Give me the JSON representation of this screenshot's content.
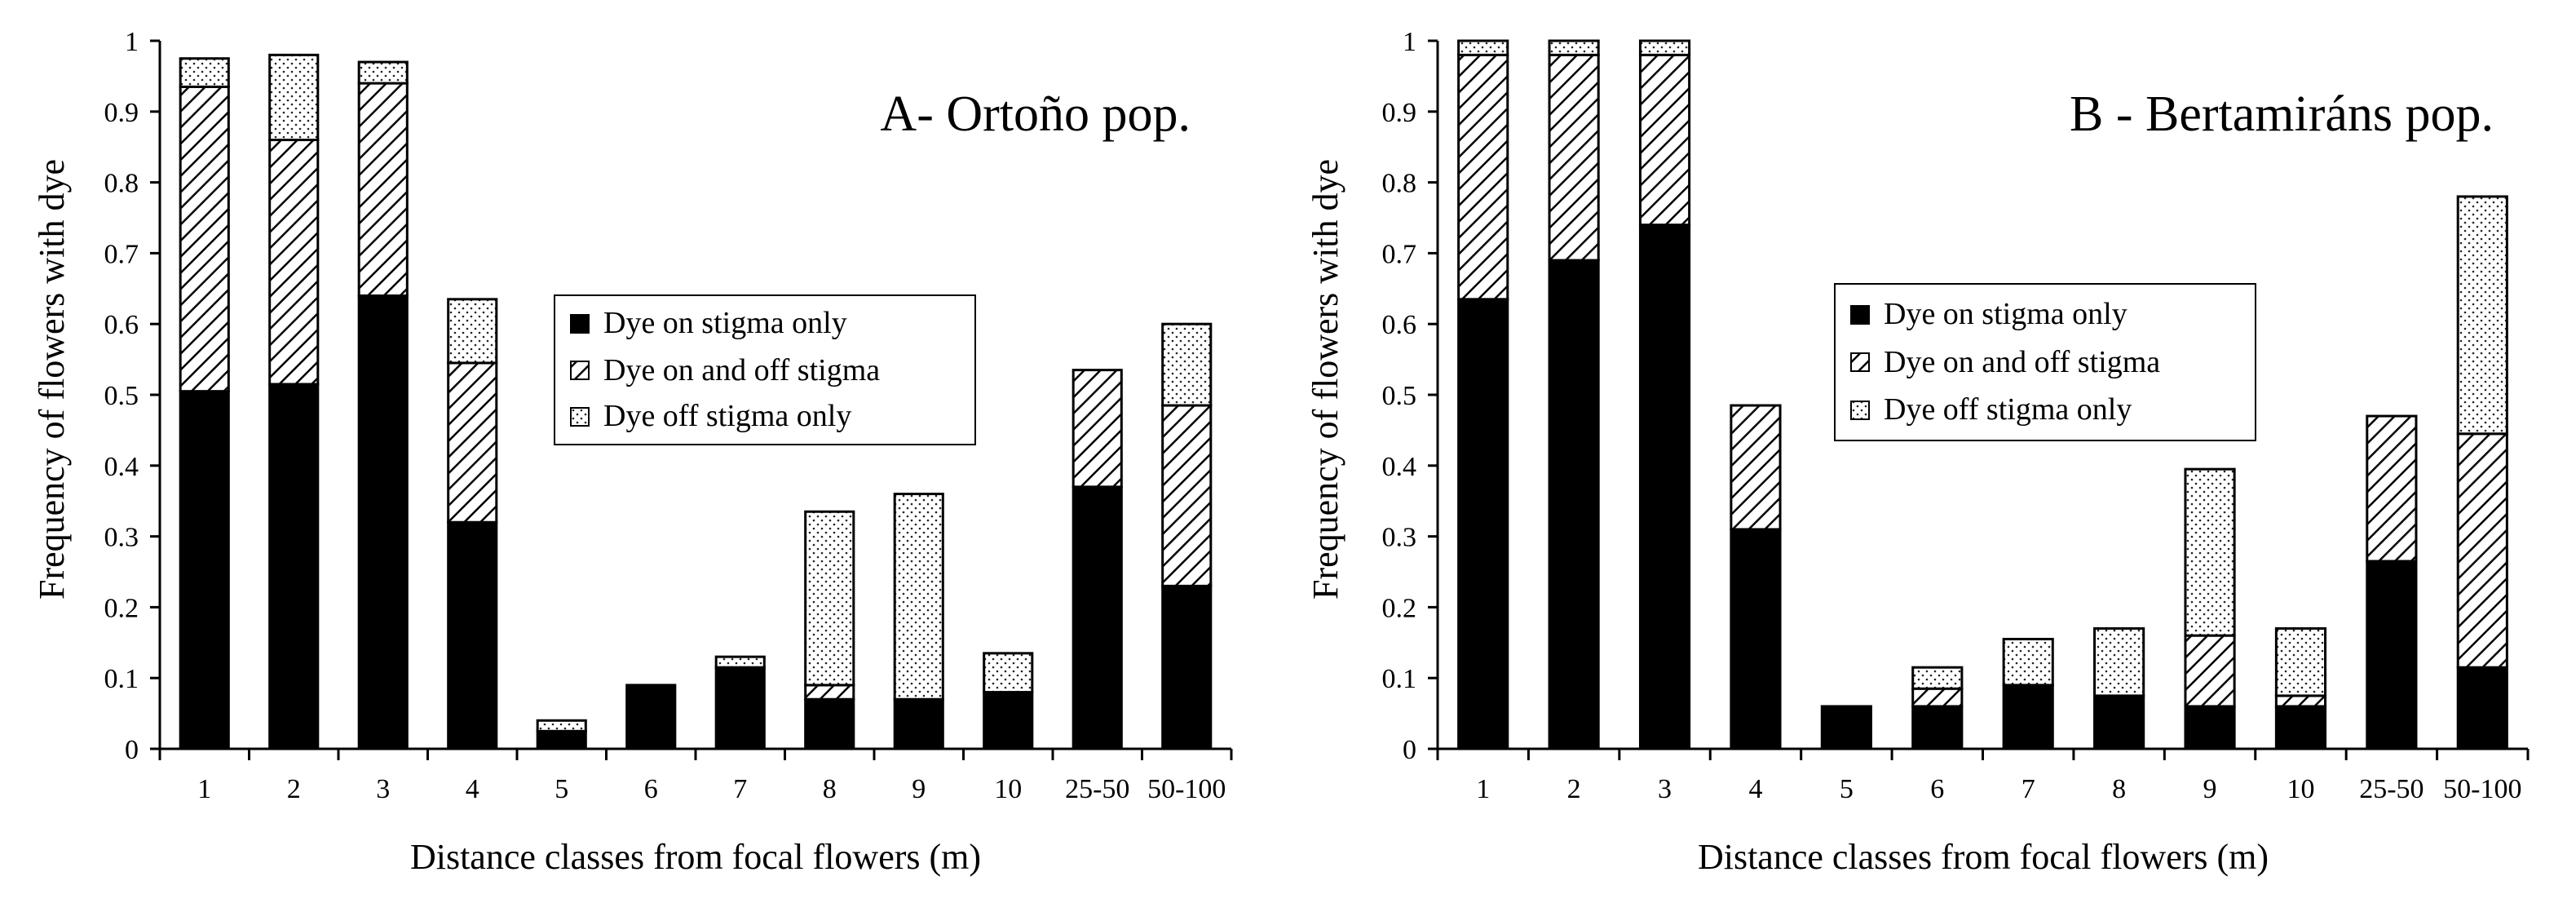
{
  "chart_data": [
    {
      "panel": "A",
      "type": "bar",
      "stacked": true,
      "title": "A- Ortoño pop.",
      "xlabel": "Distance classes from focal flowers (m)",
      "ylabel": "Frequency of flowers with dye",
      "ylim": [
        0,
        1
      ],
      "yticks": [
        "0",
        "0.1",
        "0.2",
        "0.3",
        "0.4",
        "0.5",
        "0.6",
        "0.7",
        "0.8",
        "0.9",
        "1"
      ],
      "categories": [
        "1",
        "2",
        "3",
        "4",
        "5",
        "6",
        "7",
        "8",
        "9",
        "10",
        "25-50",
        "50-100"
      ],
      "legend_position": "center",
      "series": [
        {
          "name": "Dye on stigma only",
          "pattern": "solid",
          "values": [
            0.505,
            0.515,
            0.64,
            0.32,
            0.025,
            0.09,
            0.115,
            0.07,
            0.07,
            0.08,
            0.37,
            0.23
          ]
        },
        {
          "name": "Dye on and off stigma",
          "pattern": "hatch",
          "values": [
            0.43,
            0.345,
            0.3,
            0.225,
            0.0,
            0.0,
            0.0,
            0.02,
            0.0,
            0.0,
            0.165,
            0.255
          ]
        },
        {
          "name": "Dye off stigma only",
          "pattern": "dots",
          "values": [
            0.04,
            0.12,
            0.03,
            0.09,
            0.015,
            0.0,
            0.015,
            0.245,
            0.29,
            0.055,
            0.0,
            0.115
          ]
        }
      ]
    },
    {
      "panel": "B",
      "type": "bar",
      "stacked": true,
      "title": "B - Bertamiráns pop.",
      "xlabel": "Distance classes from focal flowers (m)",
      "ylabel": "Frequency of flowers with dye",
      "ylim": [
        0,
        1
      ],
      "yticks": [
        "0",
        "0.1",
        "0.2",
        "0.3",
        "0.4",
        "0.5",
        "0.6",
        "0.7",
        "0.8",
        "0.9",
        "1"
      ],
      "categories": [
        "1",
        "2",
        "3",
        "4",
        "5",
        "6",
        "7",
        "8",
        "9",
        "10",
        "25-50",
        "50-100"
      ],
      "legend_position": "center",
      "series": [
        {
          "name": "Dye on stigma only",
          "pattern": "solid",
          "values": [
            0.635,
            0.69,
            0.74,
            0.31,
            0.06,
            0.06,
            0.09,
            0.075,
            0.06,
            0.06,
            0.265,
            0.115
          ]
        },
        {
          "name": "Dye on and off stigma",
          "pattern": "hatch",
          "values": [
            0.345,
            0.29,
            0.24,
            0.175,
            0.0,
            0.025,
            0.0,
            0.0,
            0.1,
            0.015,
            0.205,
            0.33
          ]
        },
        {
          "name": "Dye off stigma only",
          "pattern": "dots",
          "values": [
            0.02,
            0.02,
            0.02,
            0.0,
            0.0,
            0.03,
            0.065,
            0.095,
            0.235,
            0.095,
            0.0,
            0.335
          ]
        }
      ]
    }
  ]
}
